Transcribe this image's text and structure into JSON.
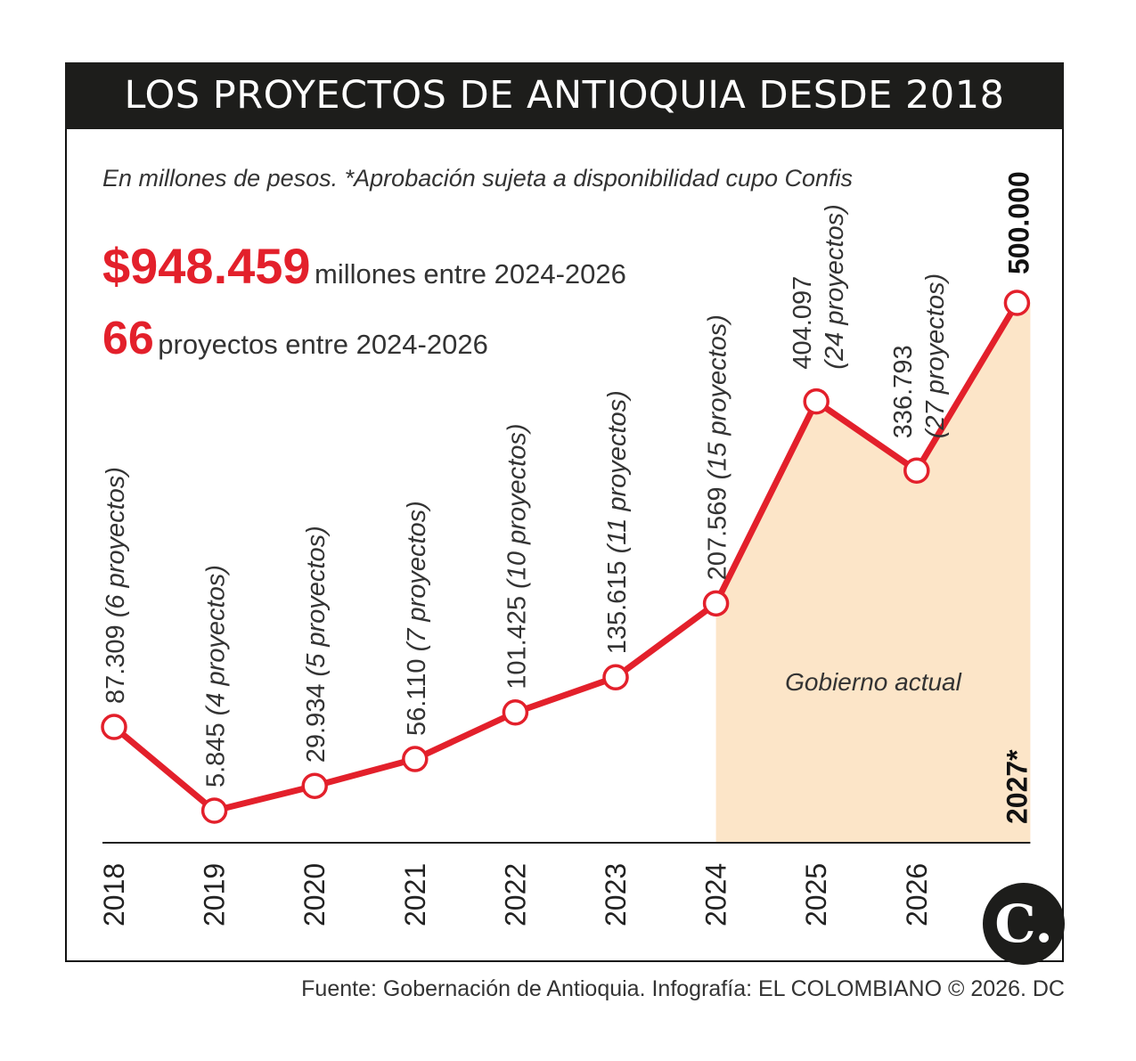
{
  "title": "LOS PROYECTOS DE ANTIOQUIA DESDE 2018",
  "subtitle": "En millones de pesos. *Aprobación sujeta a disponibilidad cupo Confis",
  "stats": [
    {
      "value": "$948.459",
      "text": "millones entre 2024-2026"
    },
    {
      "value": "66",
      "text": "proyectos entre 2024-2026"
    }
  ],
  "shaded_label": "Gobierno actual",
  "source": "Fuente: Gobernación de Antioquia. Infografía: EL COLOMBIANO © 2026. DC",
  "logo_text": "C.",
  "colors": {
    "line": "#e3202b",
    "shade": "#fce5c8",
    "text": "#333333",
    "title_bg": "#1d1d1b"
  },
  "chart_data": {
    "type": "line",
    "x": [
      "2018",
      "2019",
      "2020",
      "2021",
      "2022",
      "2023",
      "2024",
      "2025",
      "2026",
      "2027*"
    ],
    "values": [
      87309,
      5845,
      29934,
      56110,
      101425,
      135615,
      207569,
      404097,
      336793,
      500000
    ],
    "labels": [
      "87.309",
      "5.845",
      "29.934",
      "56.110",
      "101.425",
      "135.615",
      "207.569",
      "404.097",
      "336.793",
      "500.000"
    ],
    "projects": [
      "(6 proyectos)",
      "(4 proyectos)",
      "(5 proyectos)",
      "(7 proyectos)",
      "(10 proyectos)",
      "(11 proyectos)",
      "(15 proyectos)",
      "(24 proyectos)",
      "(27 proyectos)",
      ""
    ],
    "shaded_from": "2024",
    "shaded_to": "2027*",
    "ylim": [
      0,
      500000
    ],
    "grid": false
  }
}
